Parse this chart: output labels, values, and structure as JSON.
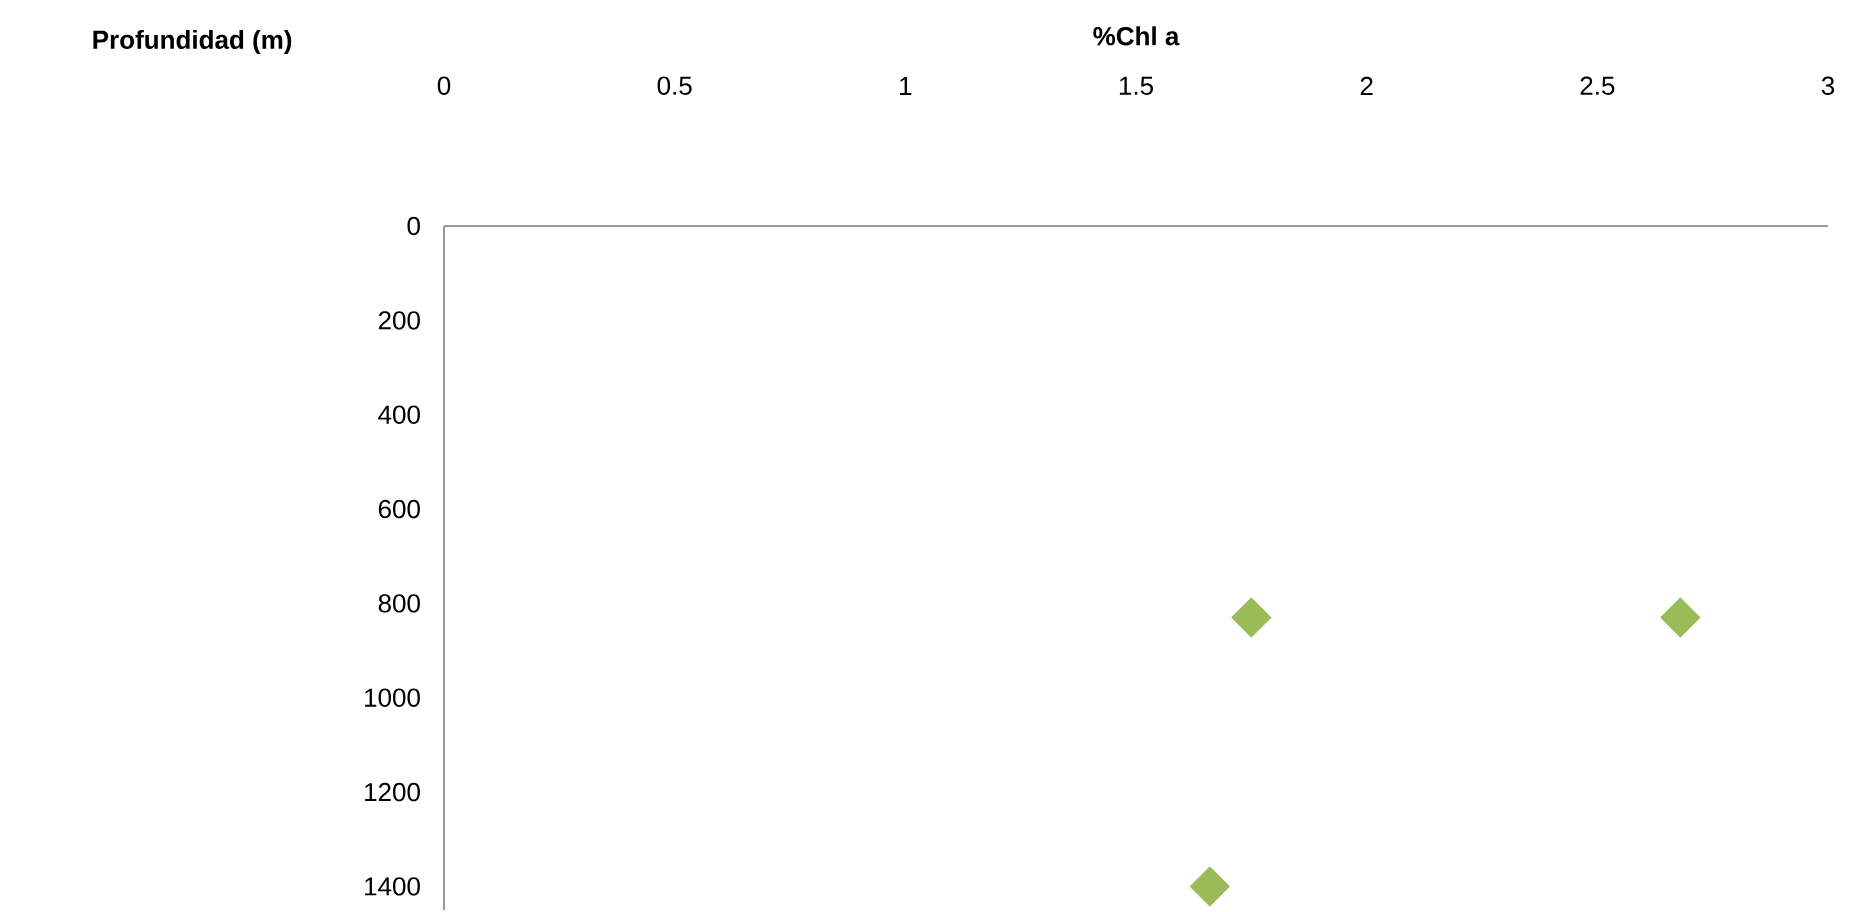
{
  "chart_data": {
    "type": "scatter",
    "xlabel": "%Chl a",
    "ylabel": "Profundidad (m)",
    "x": [
      1.75,
      2.68,
      1.66
    ],
    "series": [
      {
        "color": "#9bbb59",
        "values": [
          830,
          830,
          1400
        ]
      }
    ],
    "marker": "diamond",
    "xlim": [
      0,
      3
    ],
    "xticks": [
      0,
      0.5,
      1,
      1.5,
      2,
      2.5,
      3
    ],
    "ylim": [
      1450,
      0
    ],
    "yticks": [
      0,
      200,
      400,
      600,
      800,
      1000,
      1200,
      1400
    ]
  }
}
